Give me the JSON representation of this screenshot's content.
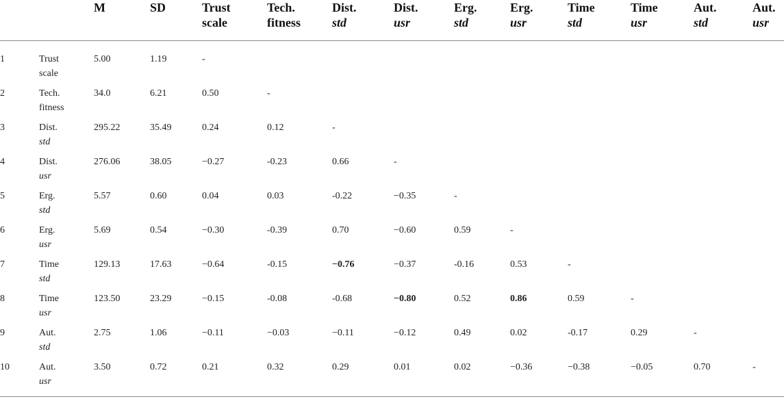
{
  "headers": [
    {
      "l1": "M",
      "l2": ""
    },
    {
      "l1": "SD",
      "l2": ""
    },
    {
      "l1": "Trust",
      "l2": "scale"
    },
    {
      "l1": "Tech.",
      "l2": "fitness"
    },
    {
      "l1": "Dist.",
      "l2": "std"
    },
    {
      "l1": "Dist.",
      "l2": "usr"
    },
    {
      "l1": "Erg.",
      "l2": "std"
    },
    {
      "l1": "Erg.",
      "l2": "usr"
    },
    {
      "l1": "Time",
      "l2": "std"
    },
    {
      "l1": "Time",
      "l2": "usr"
    },
    {
      "l1": "Aut.",
      "l2": "std"
    },
    {
      "l1": "Aut.",
      "l2": "usr"
    }
  ],
  "rows": [
    {
      "num": "1",
      "l1": "Trust",
      "l2": "scale",
      "m": "5.00",
      "sd": "1.19",
      "cells": [
        "-"
      ]
    },
    {
      "num": "2",
      "l1": "Tech.",
      "l2": "fitness",
      "m": "34.0",
      "sd": "6.21",
      "cells": [
        "0.50",
        "-"
      ]
    },
    {
      "num": "3",
      "l1": "Dist.",
      "l2": "std",
      "m": "295.22",
      "sd": "35.49",
      "cells": [
        "0.24",
        "0.12",
        "-"
      ]
    },
    {
      "num": "4",
      "l1": "Dist.",
      "l2": "usr",
      "m": "276.06",
      "sd": "38.05",
      "cells": [
        "−0.27",
        "-0.23",
        "0.66",
        "-"
      ]
    },
    {
      "num": "5",
      "l1": "Erg.",
      "l2": "std",
      "m": "5.57",
      "sd": "0.60",
      "cells": [
        "0.04",
        "0.03",
        "-0.22",
        "−0.35",
        "-"
      ]
    },
    {
      "num": "6",
      "l1": "Erg.",
      "l2": "usr",
      "m": "5.69",
      "sd": "0.54",
      "cells": [
        "−0.30",
        "-0.39",
        "0.70",
        "−0.60",
        "0.59",
        "-"
      ]
    },
    {
      "num": "7",
      "l1": "Time",
      "l2": "std",
      "m": "129.13",
      "sd": "17.63",
      "cells": [
        "−0.64",
        "-0.15",
        "−0.76",
        "−0.37",
        "-0.16",
        "0.53",
        "-"
      ]
    },
    {
      "num": "8",
      "l1": "Time",
      "l2": "usr",
      "m": "123.50",
      "sd": "23.29",
      "cells": [
        "−0.15",
        "-0.08",
        "-0.68",
        "−0.80",
        "0.52",
        "0.86",
        "0.59",
        "-"
      ]
    },
    {
      "num": "9",
      "l1": "Aut.",
      "l2": "std",
      "m": "2.75",
      "sd": "1.06",
      "cells": [
        "−0.11",
        "−0.03",
        "−0.11",
        "−0.12",
        "0.49",
        "0.02",
        "-0.17",
        "0.29",
        "-"
      ]
    },
    {
      "num": "10",
      "l1": "Aut.",
      "l2": "usr",
      "m": "3.50",
      "sd": "0.72",
      "cells": [
        "0.21",
        "0.32",
        "0.29",
        "0.01",
        "0.02",
        "−0.36",
        "−0.38",
        "−0.05",
        "0.70",
        "-"
      ]
    }
  ],
  "bold_cells": [
    {
      "row": 6,
      "col": 2
    },
    {
      "row": 7,
      "col": 3
    },
    {
      "row": 7,
      "col": 5
    }
  ]
}
